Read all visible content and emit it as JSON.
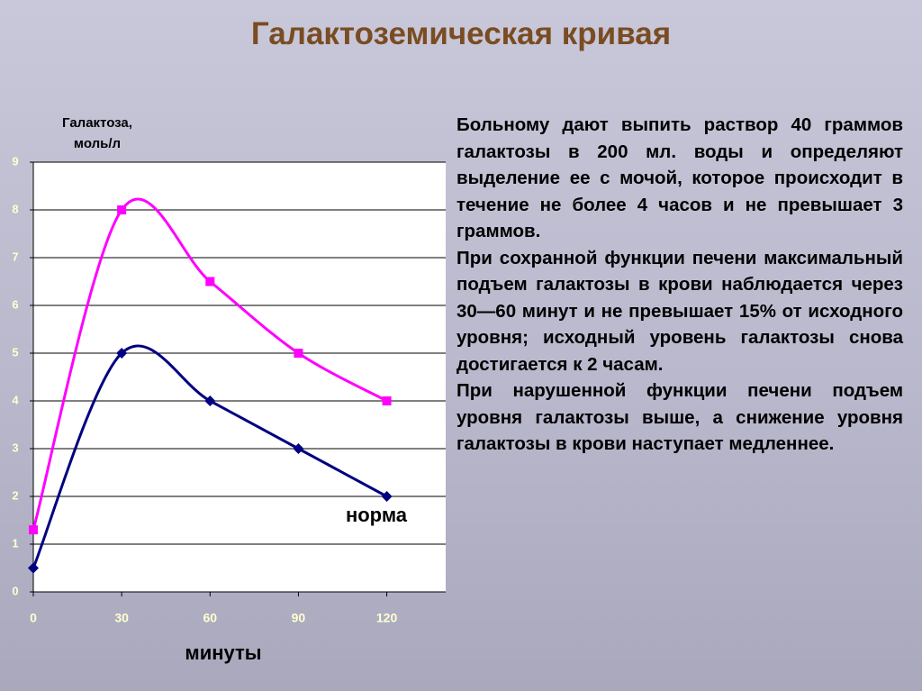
{
  "title": "Галактоземическая кривая",
  "chart_data": {
    "type": "line",
    "ylabel": [
      "Галактоза,",
      "моль/л"
    ],
    "xlabel": "минуты",
    "x": [
      0,
      30,
      60,
      90,
      120
    ],
    "xlim": [
      0,
      140
    ],
    "xticks": [
      0,
      30,
      60,
      90,
      120
    ],
    "ylim": [
      0,
      9
    ],
    "yticks": [
      0,
      1,
      2,
      3,
      4,
      5,
      6,
      7,
      8,
      9
    ],
    "grid": true,
    "smooth": true,
    "series": [
      {
        "color": "#ff00ff",
        "marker": "square",
        "values": [
          1.3,
          8,
          6.5,
          5,
          4
        ]
      },
      {
        "name": "норма",
        "color": "#000080",
        "marker": "diamond",
        "values": [
          0.5,
          5,
          4,
          3,
          2
        ]
      }
    ]
  },
  "text": {
    "paragraphs": [
      "Больному дают выпить раствор 40 граммов галактозы в 200 мл. воды и определяют выделение ее с мочой, которое происходит в течение не более 4 часов и не превышает 3 граммов.",
      "При сохранной функции печени максимальный подъем галактозы в крови наблюдается через 30—60 минут и не превышает 15% от исходного уровня; исходный уровень галактозы снова достигается к 2 часам.",
      "При нарушенной функции печени подъем уровня галактозы выше, а снижение уровня галактозы в крови наступает медленнее."
    ]
  }
}
